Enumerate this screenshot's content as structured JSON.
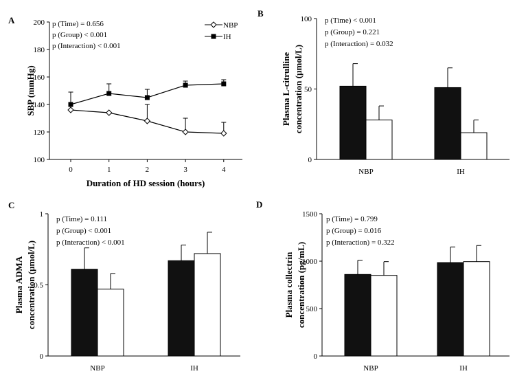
{
  "chart_data": [
    {
      "panel": "A",
      "type": "line",
      "ylabel": "SBP (mmHg)",
      "xlabel": "Duration of HD session (hours)",
      "x": [
        0,
        1,
        2,
        3,
        4
      ],
      "xticks": [
        "0",
        "1",
        "2",
        "3",
        "4"
      ],
      "ylim": [
        100,
        200
      ],
      "yticks": [
        "100",
        "120",
        "140",
        "160",
        "180",
        "200"
      ],
      "stats": [
        "p (Time)     = 0.656",
        "p (Group) < 0.001",
        "p (Interaction)   < 0.001"
      ],
      "legend_position": "top-right",
      "series": [
        {
          "name": "NBP",
          "marker": "open-diamond",
          "values": [
            136,
            134,
            128,
            120,
            119
          ],
          "err": [
            0,
            0,
            12,
            10,
            8
          ]
        },
        {
          "name": "IH",
          "marker": "filled-square",
          "values": [
            140,
            148,
            145,
            154,
            155
          ],
          "err": [
            9,
            7,
            6,
            3,
            3
          ]
        }
      ]
    },
    {
      "panel": "B",
      "type": "bar",
      "ylabel": "Plasma L-citrulline concentration (µmol/L)",
      "ylabel_lines": [
        "Plasma L-citrulline",
        "concentration (µmol/L)"
      ],
      "categories": [
        "NBP",
        "IH"
      ],
      "ylim": [
        0,
        100
      ],
      "yticks": [
        "0",
        "50",
        "100"
      ],
      "stats": [
        "p (Time)      < 0.001",
        "p (Group) = 0.221",
        "p (Interaction)    = 0.032"
      ],
      "series": [
        {
          "fill": "black",
          "values": [
            52,
            51
          ],
          "err": [
            16,
            14
          ]
        },
        {
          "fill": "white",
          "values": [
            28,
            19
          ],
          "err": [
            10,
            9
          ]
        }
      ]
    },
    {
      "panel": "C",
      "type": "bar",
      "ylabel": "Plasma ADMA concentration (µmol/L)",
      "ylabel_lines": [
        "Plasma ADMA",
        "concentration (µmol/L)"
      ],
      "categories": [
        "NBP",
        "IH"
      ],
      "ylim": [
        0,
        1
      ],
      "yticks": [
        "0",
        "0.5",
        "1"
      ],
      "stats": [
        "p (Time)      = 0.111",
        "p (Group) < 0.001",
        "p (Interaction)    < 0.001"
      ],
      "series": [
        {
          "fill": "black",
          "values": [
            0.61,
            0.67
          ],
          "err": [
            0.15,
            0.11
          ]
        },
        {
          "fill": "white",
          "values": [
            0.47,
            0.72
          ],
          "err": [
            0.11,
            0.15
          ]
        }
      ]
    },
    {
      "panel": "D",
      "type": "bar",
      "ylabel": "Plasma collectrin concentration (pg/mL)",
      "ylabel_lines": [
        "Plasma collectrin",
        "concentration (pg/mL)"
      ],
      "categories": [
        "NBP",
        "IH"
      ],
      "ylim": [
        0,
        1500
      ],
      "yticks": [
        "0",
        "500",
        "1000",
        "1500"
      ],
      "stats": [
        "p (Time)      = 0.799",
        "p (Group) = 0.016",
        "p (Interaction)    = 0.322"
      ],
      "series": [
        {
          "fill": "black",
          "values": [
            860,
            985
          ],
          "err": [
            150,
            165
          ]
        },
        {
          "fill": "white",
          "values": [
            850,
            995
          ],
          "err": [
            145,
            170
          ]
        }
      ]
    }
  ]
}
